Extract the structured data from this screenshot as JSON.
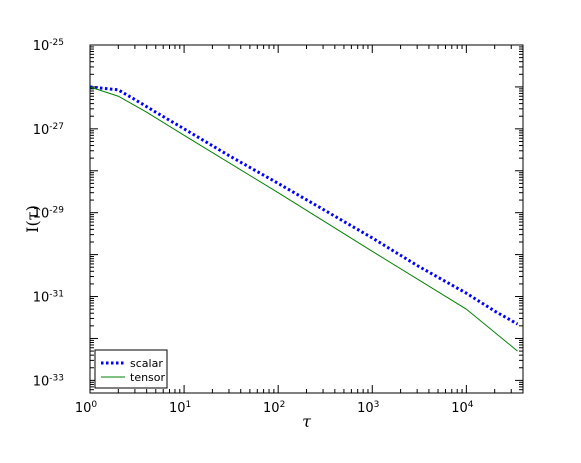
{
  "chart_data": {
    "type": "line",
    "title": "",
    "xlabel": "τ",
    "ylabel": "I(τ)",
    "xscale": "log",
    "yscale": "log",
    "xlim": [
      1,
      40000
    ],
    "ylim": [
      5e-34,
      1e-25
    ],
    "grid": false,
    "legend_position": "lower-left",
    "x_ticks": [
      {
        "value": 1,
        "base": "10",
        "exp": "0"
      },
      {
        "value": 10,
        "base": "10",
        "exp": "1"
      },
      {
        "value": 100,
        "base": "10",
        "exp": "2"
      },
      {
        "value": 1000,
        "base": "10",
        "exp": "3"
      },
      {
        "value": 10000,
        "base": "10",
        "exp": "4"
      }
    ],
    "y_ticks": [
      {
        "value": 1e-33,
        "base": "10",
        "exp": "-33"
      },
      {
        "value": 1e-31,
        "base": "10",
        "exp": "-31"
      },
      {
        "value": 1e-29,
        "base": "10",
        "exp": "-29"
      },
      {
        "value": 1e-27,
        "base": "10",
        "exp": "-27"
      },
      {
        "value": 1e-25,
        "base": "10",
        "exp": "-25"
      }
    ],
    "series": [
      {
        "name": "scalar",
        "color": "#0000ff",
        "style": "dash-dot",
        "x": [
          1,
          2,
          3,
          5,
          10,
          30,
          100,
          300,
          1000,
          3000,
          10000,
          20000,
          35000
        ],
        "y": [
          1e-26,
          8.5e-27,
          5e-27,
          2.5e-27,
          1e-27,
          2.3e-28,
          5e-29,
          1.2e-29,
          2.5e-30,
          5.5e-31,
          1.2e-31,
          4.5e-32,
          2.2e-32
        ]
      },
      {
        "name": "tensor",
        "color": "#008000",
        "style": "solid",
        "x": [
          1,
          2,
          4,
          10,
          100,
          1000,
          10000,
          35000
        ],
        "y": [
          1e-26,
          6e-27,
          2.5e-27,
          7e-28,
          3e-29,
          1.2e-30,
          5e-32,
          5e-33
        ]
      }
    ]
  }
}
